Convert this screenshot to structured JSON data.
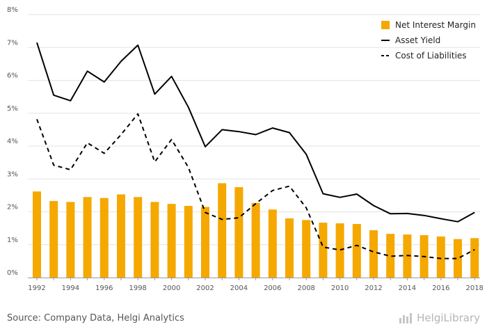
{
  "chart_data": {
    "type": "bar",
    "x": [
      1992,
      1993,
      1994,
      1995,
      1996,
      1997,
      1998,
      1999,
      2000,
      2001,
      2002,
      2003,
      2004,
      2005,
      2006,
      2007,
      2008,
      2009,
      2010,
      2011,
      2012,
      2013,
      2014,
      2015,
      2016,
      2017,
      2018
    ],
    "x_tick_labels": [
      "1992",
      "1994",
      "1996",
      "1998",
      "2000",
      "2002",
      "2004",
      "2006",
      "2008",
      "2010",
      "2012",
      "2014",
      "2016",
      "2018"
    ],
    "y_tick_labels": [
      "0%",
      "1%",
      "2%",
      "3%",
      "4%",
      "5%",
      "6%",
      "7%",
      "8%"
    ],
    "ylim": [
      0,
      8
    ],
    "series": [
      {
        "name": "Net Interest Margin",
        "type": "bar",
        "color": "#f5a800",
        "values": [
          2.62,
          2.33,
          2.3,
          2.45,
          2.42,
          2.53,
          2.45,
          2.3,
          2.24,
          2.18,
          2.15,
          2.87,
          2.75,
          2.27,
          2.07,
          1.8,
          1.75,
          1.67,
          1.65,
          1.63,
          1.44,
          1.33,
          1.31,
          1.29,
          1.25,
          1.17,
          1.2
        ]
      },
      {
        "name": "Asset Yield",
        "type": "line",
        "color": "#000000",
        "dash": "solid",
        "values": [
          7.15,
          5.55,
          5.38,
          6.28,
          5.95,
          6.58,
          7.07,
          5.58,
          6.12,
          5.18,
          3.98,
          4.5,
          4.44,
          4.35,
          4.55,
          4.41,
          3.75,
          2.55,
          2.44,
          2.54,
          2.19,
          1.94,
          1.95,
          1.89,
          1.79,
          1.7,
          1.98
        ]
      },
      {
        "name": "Cost of Liabilities",
        "type": "line",
        "color": "#000000",
        "dash": "dashed",
        "values": [
          4.82,
          3.42,
          3.28,
          4.1,
          3.78,
          4.35,
          4.98,
          3.52,
          4.2,
          3.35,
          1.98,
          1.77,
          1.82,
          2.25,
          2.65,
          2.78,
          2.12,
          0.93,
          0.84,
          0.98,
          0.78,
          0.65,
          0.67,
          0.64,
          0.58,
          0.58,
          0.85
        ]
      }
    ],
    "legend_position": "top-right",
    "grid": true
  },
  "footer": {
    "source": "Source: Company Data, Helgi Analytics",
    "brand": "HelgiLibrary"
  }
}
